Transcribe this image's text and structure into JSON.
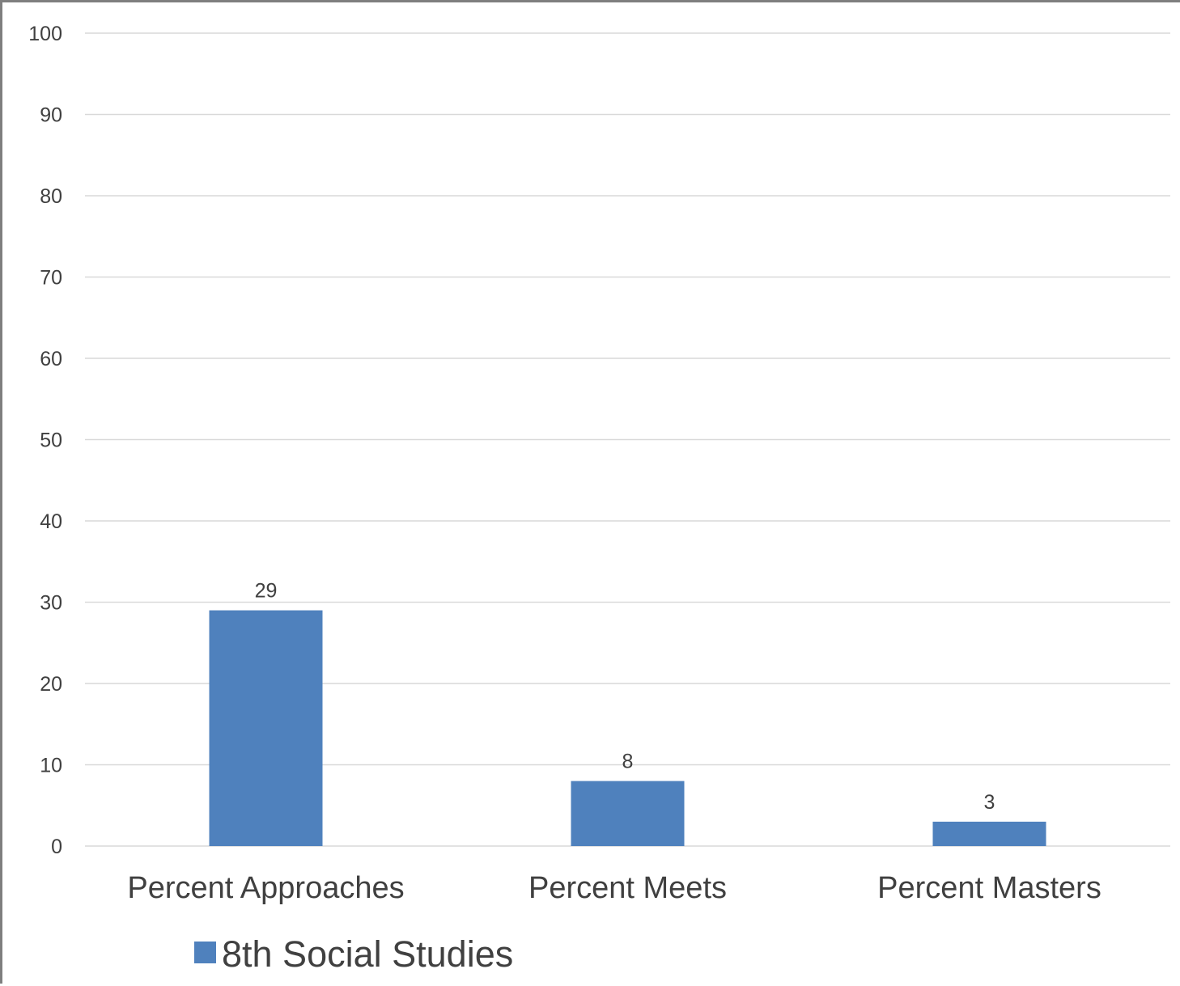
{
  "chart_data": {
    "type": "bar",
    "categories": [
      "Percent Approaches",
      "Percent Meets",
      "Percent Masters"
    ],
    "series": [
      {
        "name": "8th Social Studies",
        "values": [
          29,
          8,
          3
        ]
      }
    ],
    "ylim": [
      0,
      100
    ],
    "yticks": [
      0,
      10,
      20,
      30,
      40,
      50,
      60,
      70,
      80,
      90,
      100
    ],
    "data_labels": true,
    "grid": true,
    "legend_position": "bottom",
    "bar_color": "#4f81bd",
    "grid_color": "#d9d9d9",
    "text_color": "#404040"
  }
}
